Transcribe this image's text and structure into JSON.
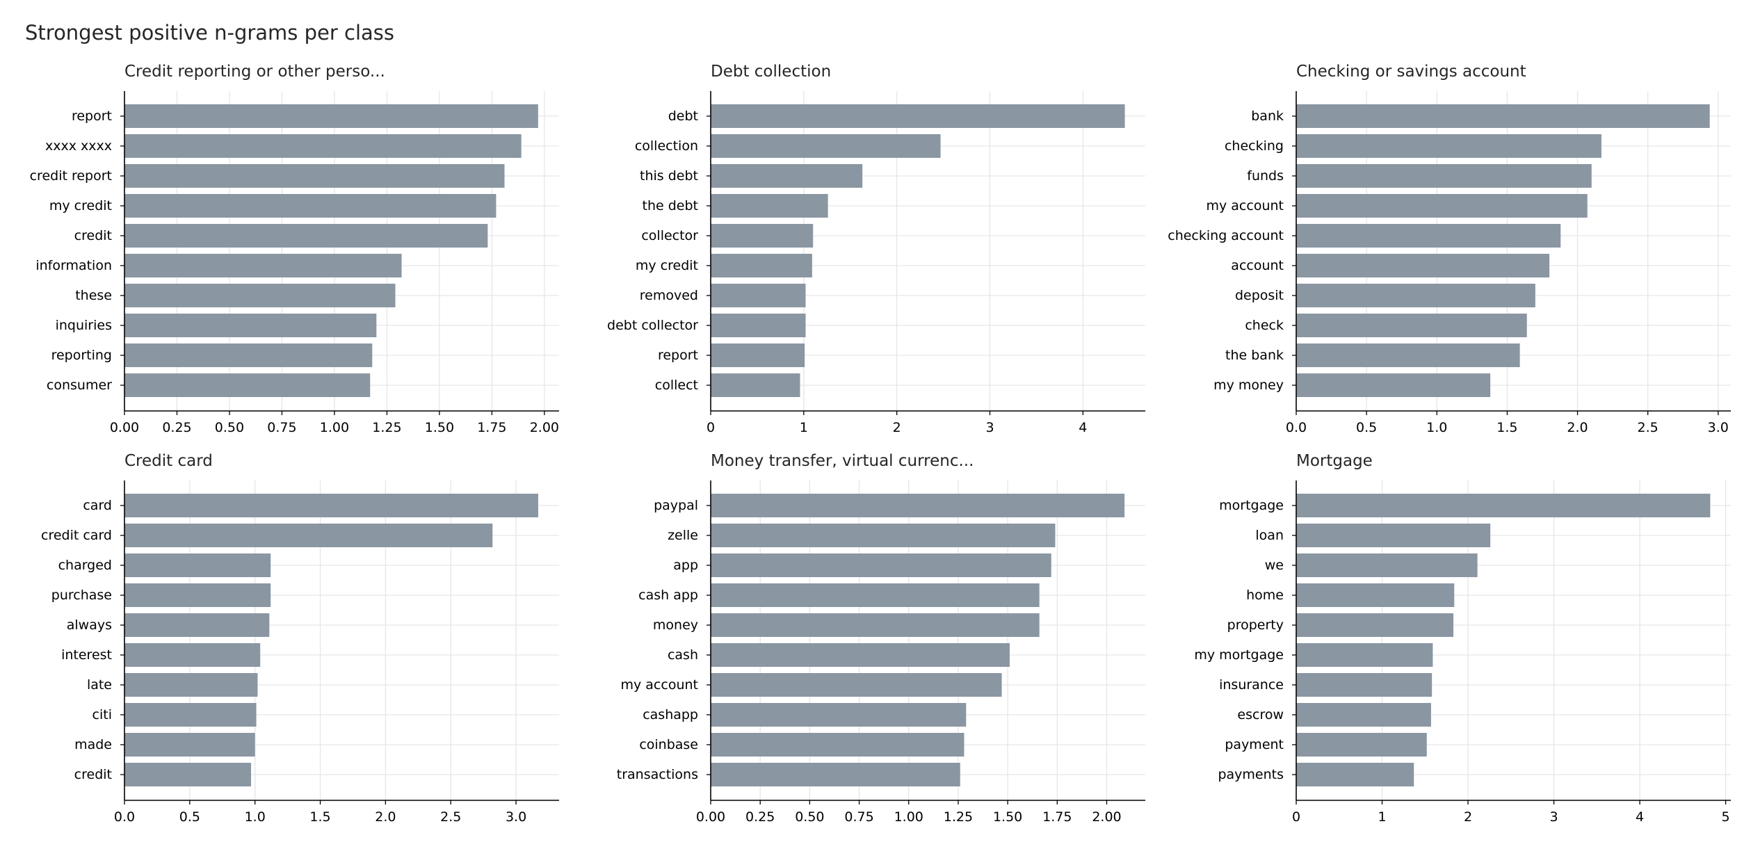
{
  "figure": {
    "title": "Strongest positive n-grams per class"
  },
  "colors": {
    "bar": "#8a96a2",
    "grid": "#e6e6e6",
    "axis": "#000000"
  },
  "chart_data": [
    {
      "type": "bar",
      "orientation": "horizontal",
      "title": "Credit reporting or other perso...",
      "categories": [
        "report",
        "xxxx xxxx",
        "credit report",
        "my credit",
        "credit",
        "information",
        "these",
        "inquiries",
        "reporting",
        "consumer"
      ],
      "values": [
        1.97,
        1.89,
        1.81,
        1.77,
        1.73,
        1.32,
        1.29,
        1.2,
        1.18,
        1.17
      ],
      "xlim": [
        0,
        2.07
      ],
      "xticks": [
        0,
        0.25,
        0.5,
        0.75,
        1.0,
        1.25,
        1.5,
        1.75,
        2.0
      ],
      "xtick_labels": [
        "0.00",
        "0.25",
        "0.50",
        "0.75",
        "1.00",
        "1.25",
        "1.50",
        "1.75",
        "2.00"
      ],
      "grid": true
    },
    {
      "type": "bar",
      "orientation": "horizontal",
      "title": "Debt collection",
      "categories": [
        "debt",
        "collection",
        "this debt",
        "the debt",
        "collector",
        "my credit",
        "removed",
        "debt collector",
        "report",
        "collect"
      ],
      "values": [
        4.45,
        2.47,
        1.63,
        1.26,
        1.1,
        1.09,
        1.02,
        1.02,
        1.01,
        0.96
      ],
      "xlim": [
        0,
        4.67
      ],
      "xticks": [
        0,
        1,
        2,
        3,
        4
      ],
      "xtick_labels": [
        "0",
        "1",
        "2",
        "3",
        "4"
      ],
      "grid": true
    },
    {
      "type": "bar",
      "orientation": "horizontal",
      "title": "Checking or savings account",
      "categories": [
        "bank",
        "checking",
        "funds",
        "my account",
        "checking account",
        "account",
        "deposit",
        "check",
        "the bank",
        "my money"
      ],
      "values": [
        2.94,
        2.17,
        2.1,
        2.07,
        1.88,
        1.8,
        1.7,
        1.64,
        1.59,
        1.38
      ],
      "xlim": [
        0,
        3.09
      ],
      "xticks": [
        0,
        0.5,
        1.0,
        1.5,
        2.0,
        2.5,
        3.0
      ],
      "xtick_labels": [
        "0.0",
        "0.5",
        "1.0",
        "1.5",
        "2.0",
        "2.5",
        "3.0"
      ],
      "grid": true
    },
    {
      "type": "bar",
      "orientation": "horizontal",
      "title": "Credit card",
      "categories": [
        "card",
        "credit card",
        "charged",
        "purchase",
        "always",
        "interest",
        "late",
        "citi",
        "made",
        "credit"
      ],
      "values": [
        3.17,
        2.82,
        1.12,
        1.12,
        1.11,
        1.04,
        1.02,
        1.01,
        1.0,
        0.97
      ],
      "xlim": [
        0,
        3.33
      ],
      "xticks": [
        0,
        0.5,
        1.0,
        1.5,
        2.0,
        2.5,
        3.0
      ],
      "xtick_labels": [
        "0.0",
        "0.5",
        "1.0",
        "1.5",
        "2.0",
        "2.5",
        "3.0"
      ],
      "grid": true
    },
    {
      "type": "bar",
      "orientation": "horizontal",
      "title": "Money transfer, virtual currenc...",
      "categories": [
        "paypal",
        "zelle",
        "app",
        "cash app",
        "money",
        "cash",
        "my account",
        "cashapp",
        "coinbase",
        "transactions"
      ],
      "values": [
        2.09,
        1.74,
        1.72,
        1.66,
        1.66,
        1.51,
        1.47,
        1.29,
        1.28,
        1.26
      ],
      "xlim": [
        0,
        2.195
      ],
      "xticks": [
        0,
        0.25,
        0.5,
        0.75,
        1.0,
        1.25,
        1.5,
        1.75,
        2.0
      ],
      "xtick_labels": [
        "0.00",
        "0.25",
        "0.50",
        "0.75",
        "1.00",
        "1.25",
        "1.50",
        "1.75",
        "2.00"
      ],
      "grid": true
    },
    {
      "type": "bar",
      "orientation": "horizontal",
      "title": "Mortgage",
      "categories": [
        "mortgage",
        "loan",
        "we",
        "home",
        "property",
        "my mortgage",
        "insurance",
        "escrow",
        "payment",
        "payments"
      ],
      "values": [
        4.82,
        2.26,
        2.11,
        1.84,
        1.83,
        1.59,
        1.58,
        1.57,
        1.52,
        1.37
      ],
      "xlim": [
        0,
        5.06
      ],
      "xticks": [
        0,
        1,
        2,
        3,
        4,
        5
      ],
      "xtick_labels": [
        "0",
        "1",
        "2",
        "3",
        "4",
        "5"
      ],
      "grid": true
    }
  ]
}
